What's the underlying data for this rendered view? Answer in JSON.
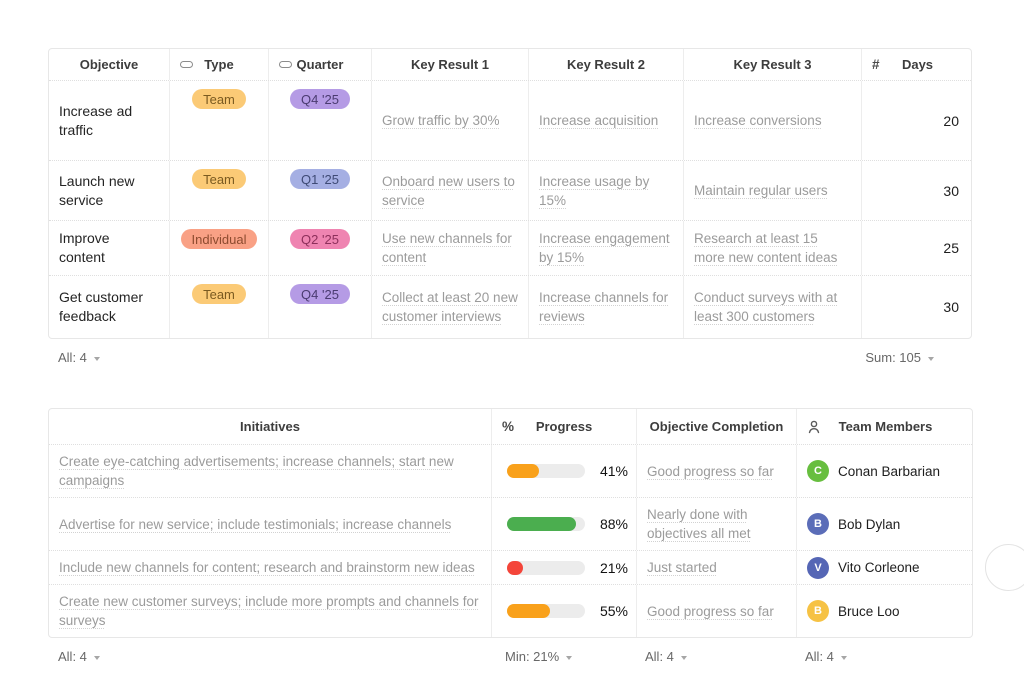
{
  "okr_table": {
    "headers": {
      "objective": "Objective",
      "type": "Type",
      "quarter": "Quarter",
      "kr1": "Key Result 1",
      "kr2": "Key Result 2",
      "kr3": "Key Result 3",
      "days_prefix": "#",
      "days": "Days"
    },
    "rows": [
      {
        "objective": "Increase ad traffic",
        "type": {
          "label": "Team",
          "bg": "#FBCA76",
          "fg": "#7A5A20"
        },
        "quarter": {
          "label": "Q4 '25",
          "bg": "#B59BE5",
          "fg": "#4A3B70"
        },
        "kr1": "Grow traffic by 30%",
        "kr2": "Increase acquisition",
        "kr3": "Increase conversions",
        "days": "20"
      },
      {
        "objective": "Launch new service",
        "type": {
          "label": "Team",
          "bg": "#FBCA76",
          "fg": "#7A5A20"
        },
        "quarter": {
          "label": "Q1 '25",
          "bg": "#A5AFE3",
          "fg": "#3E4A75"
        },
        "kr1": "Onboard new users to service",
        "kr2": "Increase usage by 15%",
        "kr3": "Maintain regular users",
        "days": "30"
      },
      {
        "objective": "Improve content",
        "type": {
          "label": "Individual",
          "bg": "#F9A185",
          "fg": "#8D4B2F"
        },
        "quarter": {
          "label": "Q2 '25",
          "bg": "#EF84B1",
          "fg": "#8D2F5B"
        },
        "kr1": "Use new channels for content",
        "kr2": "Increase engagement by 15%",
        "kr3": "Research at least 15 more new content ideas",
        "days": "25"
      },
      {
        "objective": "Get customer feedback",
        "type": {
          "label": "Team",
          "bg": "#FBCA76",
          "fg": "#7A5A20"
        },
        "quarter": {
          "label": "Q4 '25",
          "bg": "#B59BE5",
          "fg": "#4A3B70"
        },
        "kr1": "Collect at least 20 new customer interviews",
        "kr2": "Increase channels for reviews",
        "kr3": "Conduct surveys with at least 300 customers",
        "days": "30"
      }
    ],
    "footer": {
      "count": "All: 4",
      "sum": "Sum: 105"
    }
  },
  "initiatives_table": {
    "headers": {
      "initiatives": "Initiatives",
      "progress_prefix": "%",
      "progress": "Progress",
      "completion": "Objective Completion",
      "team": "Team Members"
    },
    "rows": [
      {
        "initiative": "Create eye-catching advertisements; increase channels; start new campaigns",
        "progress_percent": 41,
        "progress_label": "41%",
        "progress_color": "#F9A11B",
        "completion": "Good progress so far",
        "member": {
          "name": "Conan Barbarian",
          "initial": "C",
          "color": "#67BE3F"
        }
      },
      {
        "initiative": "Advertise for new service; include testimonials; increase channels",
        "progress_percent": 88,
        "progress_label": "88%",
        "progress_color": "#4BAE4F",
        "completion": "Nearly done with objectives all met",
        "member": {
          "name": "Bob Dylan",
          "initial": "B",
          "color": "#5B6DB8"
        }
      },
      {
        "initiative": "Include new channels for content; research and brainstorm new ideas",
        "progress_percent": 21,
        "progress_label": "21%",
        "progress_color": "#F4453A",
        "completion": "Just started",
        "member": {
          "name": "Vito Corleone",
          "initial": "V",
          "color": "#5566B5"
        }
      },
      {
        "initiative": "Create new customer surveys; include more prompts and channels for surveys",
        "progress_percent": 55,
        "progress_label": "55%",
        "progress_color": "#F9A11B",
        "completion": "Good progress so far",
        "member": {
          "name": "Bruce Loo",
          "initial": "B",
          "color": "#F6C244"
        }
      }
    ],
    "footer": {
      "count": "All: 4",
      "min": "Min: 21%",
      "completion_count": "All: 4",
      "team_count": "All: 4"
    }
  }
}
